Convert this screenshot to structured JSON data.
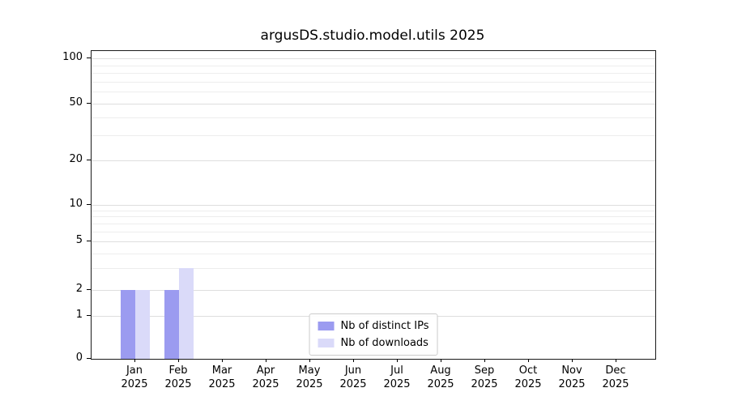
{
  "chart_data": {
    "type": "bar",
    "title": "argusDS.studio.model.utils 2025",
    "year_label": "2025",
    "categories": [
      "Jan",
      "Feb",
      "Mar",
      "Apr",
      "May",
      "Jun",
      "Jul",
      "Aug",
      "Sep",
      "Oct",
      "Nov",
      "Dec"
    ],
    "series": [
      {
        "name": "Nb of distinct IPs",
        "color": "#9b9bf0",
        "values": [
          2,
          2,
          0,
          0,
          0,
          0,
          0,
          0,
          0,
          0,
          0,
          0
        ]
      },
      {
        "name": "Nb of downloads",
        "color": "#dadaf9",
        "values": [
          2,
          3,
          0,
          0,
          0,
          0,
          0,
          0,
          0,
          0,
          0,
          0
        ]
      }
    ],
    "y_axis": {
      "scale": "symlog",
      "ticks": [
        0,
        1,
        2,
        5,
        10,
        20,
        50,
        100
      ],
      "minor_gridlines": [
        3,
        4,
        6,
        7,
        8,
        9,
        30,
        40,
        60,
        70,
        80,
        90
      ],
      "range": [
        0,
        110
      ]
    },
    "grid": true,
    "legend_position": "bottom-center"
  },
  "colors": {
    "grid_major": "#dedede",
    "grid_minor": "#ededed",
    "axis": "#1a1a1a",
    "bar_distinct_ips": "#9b9bf0",
    "bar_downloads": "#dadaf9"
  }
}
